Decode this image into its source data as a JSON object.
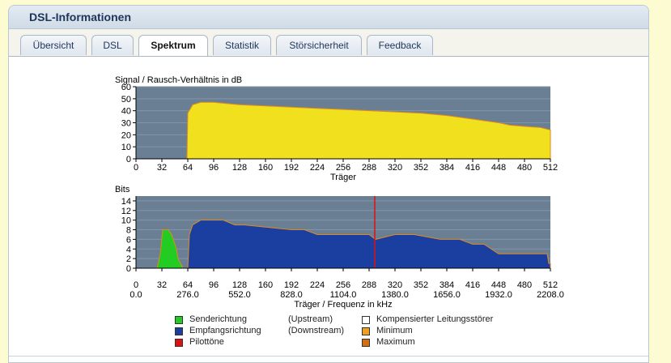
{
  "window_title": "DSL-Informationen",
  "tabs": [
    {
      "label": "Übersicht",
      "active": false
    },
    {
      "label": "DSL",
      "active": false
    },
    {
      "label": "Spektrum",
      "active": true
    },
    {
      "label": "Statistik",
      "active": false
    },
    {
      "label": "Störsicherheit",
      "active": false
    },
    {
      "label": "Feedback",
      "active": false
    }
  ],
  "chart_data": [
    {
      "type": "area",
      "title": "Signal / Rausch-Verhältnis in dB",
      "xlabel": "Träger",
      "ylabel": "",
      "xlim": [
        0,
        512
      ],
      "ylim": [
        0,
        60
      ],
      "x_ticks": [
        0,
        32,
        64,
        96,
        128,
        160,
        192,
        224,
        256,
        288,
        320,
        352,
        384,
        416,
        448,
        480,
        512
      ],
      "y_ticks": [
        0,
        10,
        20,
        30,
        40,
        50,
        60
      ],
      "series": [
        {
          "color": "#f0e01e",
          "x": [
            0,
            63,
            64,
            70,
            80,
            96,
            128,
            160,
            192,
            224,
            256,
            288,
            320,
            352,
            384,
            416,
            448,
            462,
            480,
            500,
            512
          ],
          "y": [
            0,
            0,
            38,
            45,
            47,
            47,
            45,
            44,
            43,
            42,
            41,
            40,
            39,
            38,
            36,
            33,
            30,
            28,
            27,
            26,
            24
          ]
        }
      ]
    },
    {
      "type": "area",
      "title": "Bits",
      "xlabel": "Träger / Frequenz in kHz",
      "ylabel": "",
      "xlim": [
        0,
        512
      ],
      "ylim": [
        0,
        15
      ],
      "x_ticks": [
        0,
        32,
        64,
        96,
        128,
        160,
        192,
        224,
        256,
        288,
        320,
        352,
        384,
        416,
        448,
        480,
        512
      ],
      "x_ticks_khz": [
        "0.0",
        "276.0",
        "552.0",
        "828.0",
        "1104.0",
        "1380.0",
        "1656.0",
        "1932.0",
        "2208.0"
      ],
      "y_ticks": [
        0,
        2,
        4,
        6,
        8,
        10,
        12,
        14
      ],
      "series": [
        {
          "name": "Senderichtung",
          "color": "#22cc22",
          "x": [
            26,
            30,
            33,
            36,
            40,
            44,
            46,
            50,
            52,
            55,
            58
          ],
          "y": [
            0,
            3,
            8,
            8,
            8,
            7,
            6,
            4,
            2,
            1,
            0
          ]
        },
        {
          "name": "Empfangsrichtung",
          "color": "#1a3fa0",
          "x": [
            64,
            66,
            70,
            80,
            96,
            108,
            122,
            134,
            192,
            208,
            224,
            256,
            288,
            296,
            320,
            344,
            376,
            400,
            416,
            430,
            448,
            480,
            508,
            510,
            512
          ],
          "y": [
            0,
            7,
            9,
            10,
            10,
            10,
            9,
            9,
            8,
            8,
            7,
            7,
            7,
            6,
            7,
            7,
            6,
            6,
            5,
            5,
            3,
            3,
            3,
            1,
            1
          ]
        },
        {
          "name": "Pilottöne",
          "color": "#e01010",
          "x": [
            295
          ],
          "y": [
            15
          ]
        }
      ]
    }
  ],
  "legend": {
    "left": [
      {
        "label": "Senderichtung",
        "direction": "(Upstream)",
        "color": "#22cc22"
      },
      {
        "label": "Empfangsrichtung",
        "direction": "(Downstream)",
        "color": "#1a3fa0"
      },
      {
        "label": "Pilottöne",
        "direction": "",
        "color": "#e01010"
      }
    ],
    "right": [
      {
        "label": "Kompensierter Leitungsstörer",
        "color": "#ffffff"
      },
      {
        "label": "Minimum",
        "color": "#f0a020"
      },
      {
        "label": "Maximum",
        "color": "#d07010"
      }
    ]
  }
}
